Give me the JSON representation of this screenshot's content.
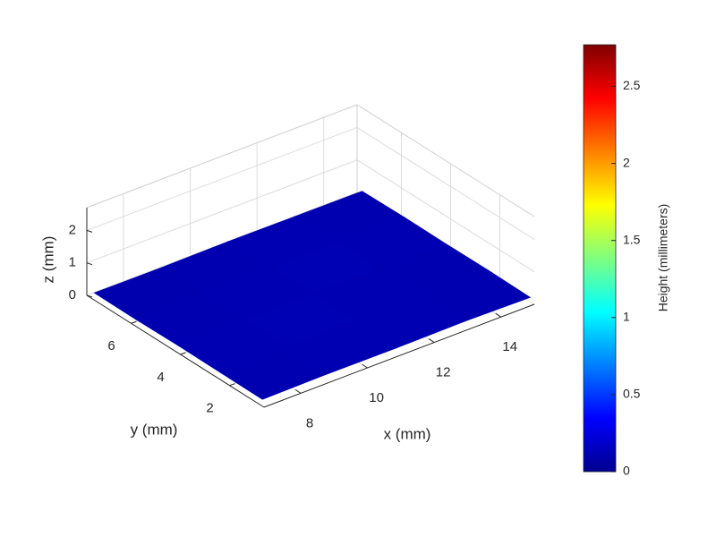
{
  "chart_data": {
    "type": "surface3d",
    "xlabel": "x (mm)",
    "ylabel": "y (mm)",
    "zlabel": "z (mm)",
    "colorbar_label": "Height (millimeters)",
    "colormap": "jet",
    "xlim": [
      6.9,
      15
    ],
    "ylim": [
      0.6,
      7.8
    ],
    "zlim": [
      0,
      2.7
    ],
    "clim": [
      0,
      2.77
    ],
    "xticks": [
      8,
      10,
      12,
      14
    ],
    "yticks": [
      2,
      4,
      6
    ],
    "zticks": [
      0,
      1,
      2
    ],
    "cticks": [
      0,
      0.5,
      1,
      1.5,
      2,
      2.5
    ],
    "grid": true,
    "x": [
      7,
      9,
      11,
      13,
      15
    ],
    "y": [
      0.8,
      2.5,
      4.2,
      5.9,
      7.6
    ],
    "z": [
      [
        0.12,
        0.14,
        0.13,
        0.15,
        0.12
      ],
      [
        0.13,
        0.15,
        0.14,
        0.13,
        0.14
      ],
      [
        0.14,
        0.13,
        0.15,
        0.14,
        0.13
      ],
      [
        0.12,
        0.14,
        0.13,
        0.15,
        0.14
      ],
      [
        0.13,
        0.12,
        0.14,
        0.13,
        0.12
      ]
    ]
  }
}
